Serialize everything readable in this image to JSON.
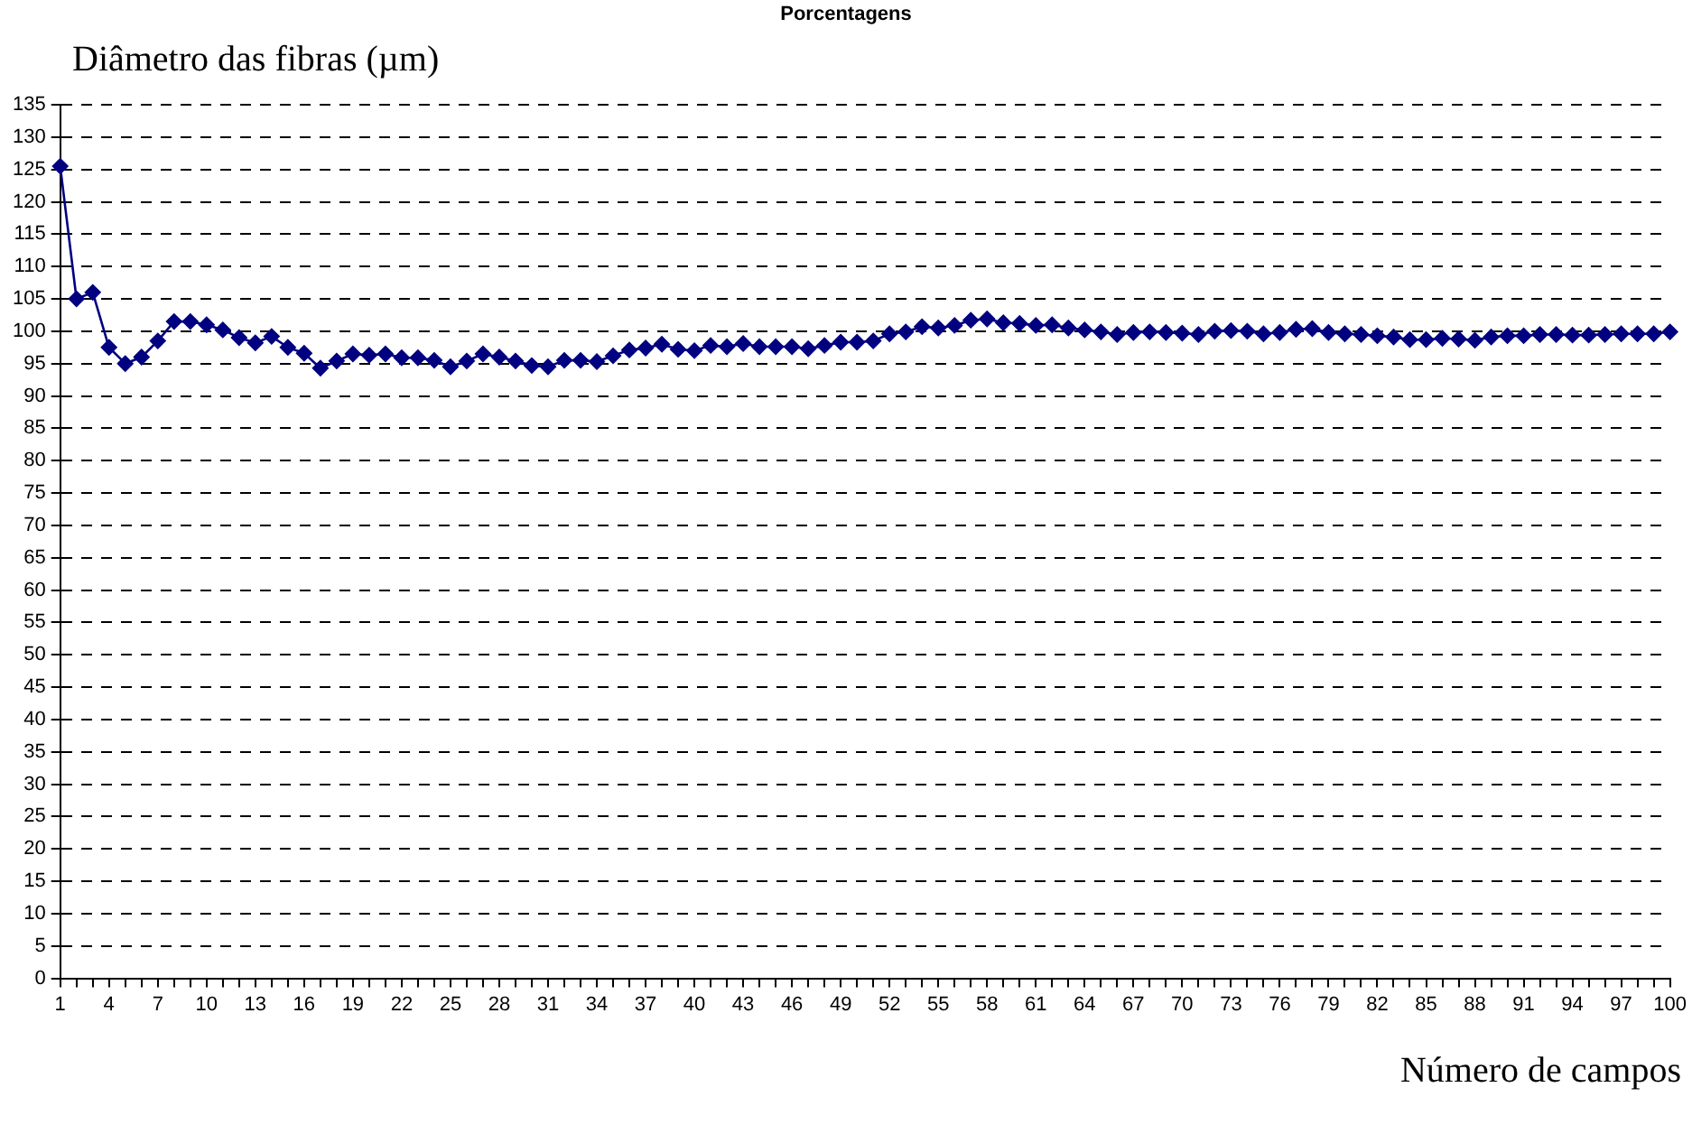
{
  "chart_data": {
    "type": "line",
    "title": "Porcentagens",
    "ylabel": "Diâmetro das fibras (µm)",
    "xlabel": "Número de campos",
    "categories": [
      "1",
      null,
      null,
      "4",
      null,
      null,
      "7",
      null,
      null,
      "10",
      null,
      null,
      "13",
      null,
      null,
      "16",
      null,
      null,
      "19",
      null,
      null,
      "22",
      null,
      null,
      "25",
      null,
      null,
      "28",
      null,
      null,
      "31",
      null,
      null,
      "34",
      null,
      null,
      "37",
      null,
      null,
      "40",
      null,
      null,
      "43",
      null,
      null,
      "46",
      null,
      null,
      "49",
      null,
      null,
      "52",
      null,
      null,
      "55",
      null,
      null,
      "58",
      null,
      null,
      "61",
      null,
      null,
      "64",
      null,
      null,
      "67",
      null,
      null,
      "70",
      null,
      null,
      "73",
      null,
      null,
      "76",
      null,
      null,
      "79",
      null,
      null,
      "82",
      null,
      null,
      "85",
      null,
      null,
      "88",
      null,
      null,
      "91",
      null,
      null,
      "94",
      null,
      null,
      "97",
      null,
      null,
      "100"
    ],
    "series": [
      {
        "color": "#000080",
        "values": [
          125.5,
          105,
          106,
          97.5,
          95,
          96,
          98.5,
          101.5,
          101.5,
          101,
          100.2,
          99,
          98.2,
          99.2,
          97.5,
          96.6,
          94.3,
          95.4,
          96.5,
          96.3,
          96.5,
          95.9,
          95.9,
          95.5,
          94.5,
          95.4,
          96.5,
          96,
          95.4,
          94.7,
          94.5,
          95.5,
          95.5,
          95.3,
          96.2,
          97.1,
          97.4,
          98,
          97.2,
          97,
          97.8,
          97.6,
          98.1,
          97.6,
          97.6,
          97.6,
          97.3,
          97.8,
          98.3,
          98.3,
          98.5,
          99.6,
          99.9,
          100.7,
          100.5,
          100.9,
          101.7,
          101.9,
          101.3,
          101.2,
          100.9,
          101,
          100.5,
          100.2,
          99.9,
          99.5,
          99.8,
          99.9,
          99.8,
          99.7,
          99.5,
          100,
          100.1,
          100,
          99.6,
          99.8,
          100.3,
          100.4,
          99.8,
          99.6,
          99.5,
          99.3,
          99.1,
          98.7,
          98.7,
          98.9,
          98.8,
          98.6,
          99.1,
          99.3,
          99.3,
          99.5,
          99.5,
          99.4,
          99.4,
          99.5,
          99.6,
          99.6,
          99.6,
          99.9
        ]
      }
    ],
    "ylim": [
      0,
      135
    ],
    "yticks": [
      0,
      5,
      10,
      15,
      20,
      25,
      30,
      35,
      40,
      45,
      50,
      55,
      60,
      65,
      70,
      75,
      80,
      85,
      90,
      95,
      100,
      105,
      110,
      115,
      120,
      125,
      130,
      135
    ],
    "grid": "y",
    "legend": false,
    "marker": "diamond",
    "line_style": "solid"
  }
}
